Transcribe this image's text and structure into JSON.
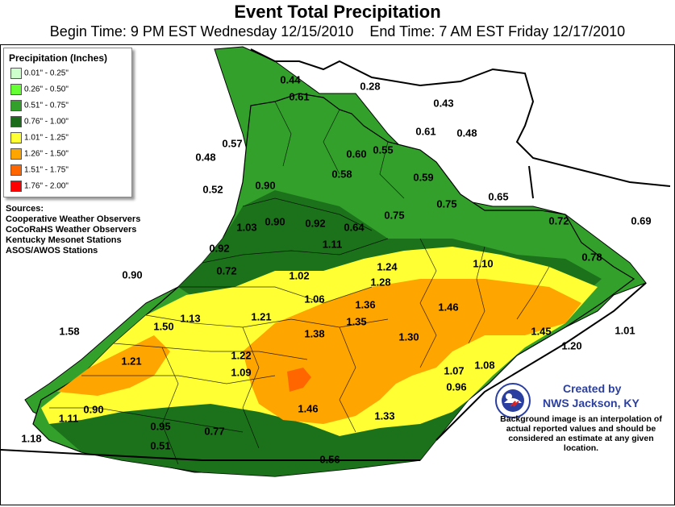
{
  "title": "Event Total Precipitation",
  "subtitle": "Begin Time: 9 PM EST Wednesday 12/15/2010    End Time: 7 AM EST Friday 12/17/2010",
  "legend": {
    "title": "Precipitation (Inches)",
    "items": [
      {
        "label": "0.01\" - 0.25\"",
        "color": "#ccffcc"
      },
      {
        "label": "0.26\" - 0.50\"",
        "color": "#66ff33"
      },
      {
        "label": "0.51\" - 0.75\"",
        "color": "#33a02c"
      },
      {
        "label": "0.76\" - 1.00\"",
        "color": "#1a6b1a"
      },
      {
        "label": "1.01\" - 1.25\"",
        "color": "#ffff33"
      },
      {
        "label": "1.26\" - 1.50\"",
        "color": "#ffa500"
      },
      {
        "label": "1.51\" - 1.75\"",
        "color": "#ff6600"
      },
      {
        "label": "1.76\" - 2.00\"",
        "color": "#ff0000"
      }
    ]
  },
  "sources": {
    "heading": "Sources:",
    "lines": [
      "Cooperative Weather Observers",
      "CoCoRaHS Weather Observers",
      "Kentucky Mesonet Stations",
      "ASOS/AWOS Stations"
    ]
  },
  "credit": {
    "title": "Created by",
    "office": "NWS Jackson, KY",
    "note": "Background image is an interpolation of actual reported values and should be considered an estimate at any given location."
  },
  "values": [
    "0.44",
    "0.28",
    "0.61",
    "0.43",
    "0.61",
    "0.48",
    "0.57",
    "0.60",
    "0.55",
    "0.48",
    "0.58",
    "0.59",
    "0.65",
    "0.52",
    "0.90",
    "0.75",
    "0.72",
    "0.69",
    "1.03",
    "0.90",
    "0.92",
    "0.64",
    "0.75",
    "0.92",
    "1.11",
    "0.78",
    "0.72",
    "1.24",
    "1.10",
    "0.90",
    "1.02",
    "1.28",
    "1.06",
    "1.36",
    "1.46",
    "1.13",
    "1.21",
    "1.58",
    "1.50",
    "1.35",
    "1.38",
    "1.30",
    "1.45",
    "1.01",
    "1.20",
    "1.21",
    "1.22",
    "1.09",
    "1.07",
    "1.08",
    "0.96",
    "1.46",
    "0.90",
    "1.11",
    "1.33",
    "0.95",
    "0.77",
    "1.18",
    "0.51",
    "0.56"
  ]
}
